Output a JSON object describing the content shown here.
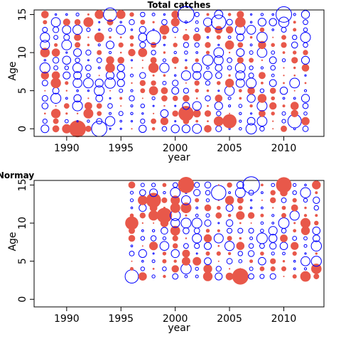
{
  "chart_data": [
    {
      "type": "scatter",
      "subtype": "bubble",
      "title": "Total catches",
      "xlabel": "year",
      "ylabel": "Age",
      "xlim": [
        1987,
        2013.7
      ],
      "ylim": [
        -1,
        15.6
      ],
      "xticks": [
        1990,
        1995,
        2000,
        2005,
        2010
      ],
      "yticks": [
        0,
        5,
        10,
        15
      ],
      "colors": {
        "positive": "#E8584A",
        "negative": "#0000FF"
      },
      "years": [
        1988,
        1989,
        1990,
        1991,
        1992,
        1993,
        1994,
        1995,
        1996,
        1997,
        1998,
        1999,
        2000,
        2001,
        2002,
        2003,
        2004,
        2005,
        2006,
        2007,
        2008,
        2009,
        2010,
        2011,
        2012
      ],
      "grid": "residual bubbles for ages 0-15 in every year 1988-2012; filled red = positive, open blue = negative",
      "highlighted_bubbles": [
        {
          "x": 1993,
          "y": 0,
          "sign": "negative"
        },
        {
          "x": 1991,
          "y": 0,
          "sign": "positive"
        },
        {
          "x": 2011,
          "y": 1,
          "sign": "negative"
        },
        {
          "x": 1994,
          "y": 15,
          "sign": "negative"
        },
        {
          "x": 2001,
          "y": 15,
          "sign": "negative"
        },
        {
          "x": 2004,
          "y": 14,
          "sign": "negative"
        },
        {
          "x": 1998,
          "y": 12,
          "sign": "negative"
        },
        {
          "x": 2010,
          "y": 15,
          "sign": "negative"
        },
        {
          "x": 2001,
          "y": 2,
          "sign": "positive"
        },
        {
          "x": 2005,
          "y": 1,
          "sign": "positive"
        }
      ]
    },
    {
      "type": "scatter",
      "subtype": "bubble",
      "title": "Normay",
      "xlabel": "year",
      "ylabel": "Age",
      "xlim": [
        1987,
        2013.7
      ],
      "ylim": [
        -1,
        15.6
      ],
      "xticks": [
        1990,
        1995,
        2000,
        2005,
        2010
      ],
      "yticks": [
        0,
        5,
        10,
        15
      ],
      "colors": {
        "positive": "#E8584A",
        "negative": "#0000FF"
      },
      "years": [
        1996,
        1997,
        1998,
        1999,
        2000,
        2001,
        2002,
        2003,
        2004,
        2005,
        2006,
        2007,
        2008,
        2009,
        2010,
        2011,
        2012,
        2013
      ],
      "grid": "residual bubbles for ages 3-15 in every year 1996-2013; filled red = positive, open blue = negative",
      "highlighted_bubbles": [
        {
          "x": 2001,
          "y": 15,
          "sign": "positive"
        },
        {
          "x": 2004,
          "y": 14,
          "sign": "negative"
        },
        {
          "x": 1998,
          "y": 13,
          "sign": "positive"
        },
        {
          "x": 1999,
          "y": 11,
          "sign": "positive"
        },
        {
          "x": 1996,
          "y": 10,
          "sign": "positive"
        },
        {
          "x": 2006,
          "y": 3,
          "sign": "positive"
        },
        {
          "x": 1996,
          "y": 3,
          "sign": "negative"
        },
        {
          "x": 2010,
          "y": 15,
          "sign": "positive"
        },
        {
          "x": 2007,
          "y": 15,
          "sign": "negative"
        }
      ]
    }
  ]
}
